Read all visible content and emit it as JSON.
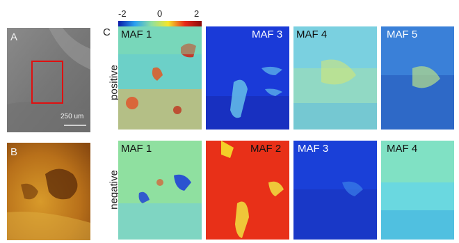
{
  "panel_a": {
    "letter": "A",
    "scalebar_label": "250 um"
  },
  "panel_b": {
    "letter": "B"
  },
  "panel_c": {
    "letter": "C",
    "colorbar": {
      "ticks": [
        "-2",
        "0",
        "2"
      ],
      "colors": [
        "#0a1aa8",
        "#2aa0f0",
        "#8fe0a0",
        "#f5e62a",
        "#e8281a",
        "#8a0a0a"
      ]
    },
    "rows": [
      {
        "label": "positive",
        "tiles": [
          "MAF 1",
          "MAF 3",
          "MAF 4",
          "MAF 5"
        ]
      },
      {
        "label": "negative",
        "tiles": [
          "MAF 1",
          "MAF 2",
          "MAF 3",
          "MAF 4"
        ]
      }
    ]
  }
}
